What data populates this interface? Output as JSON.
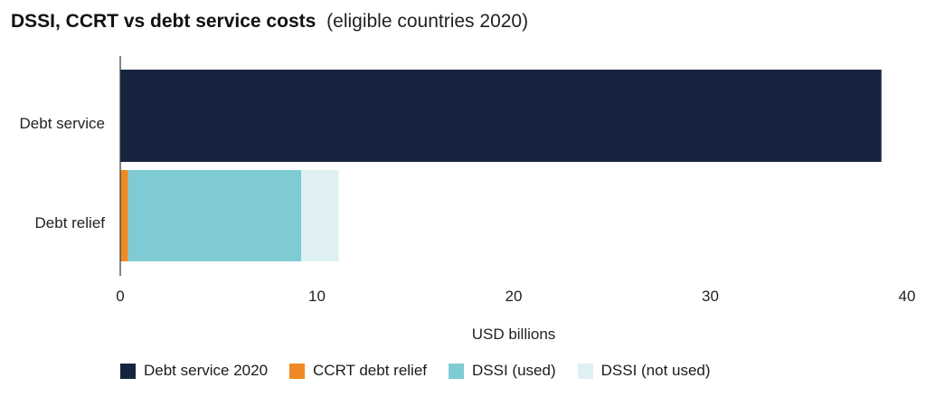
{
  "header": {
    "title": "DSSI, CCRT vs debt service costs",
    "subtitle": "(eligible countries 2020)"
  },
  "colors": {
    "debt_service": "#172440",
    "ccrt": "#f08a24",
    "dssi_used": "#7ecbd3",
    "dssi_not_used": "#dff0f3",
    "axis": "#333333"
  },
  "chart_data": {
    "type": "bar",
    "orientation": "horizontal",
    "stacked": true,
    "categories": [
      "Debt service",
      "Debt relief"
    ],
    "series": [
      {
        "name": "Debt service 2020",
        "values": [
          38.7,
          0
        ]
      },
      {
        "name": "CCRT debt relief",
        "values": [
          0,
          0.4
        ]
      },
      {
        "name": "DSSI (used)",
        "values": [
          0,
          8.8
        ]
      },
      {
        "name": "DSSI (not used)",
        "values": [
          0,
          1.9
        ]
      }
    ],
    "xlabel": "USD billions",
    "xlim": [
      0,
      40
    ],
    "xticks": [
      "0",
      "10",
      "20",
      "30",
      "40"
    ],
    "grid": false,
    "legend_position": "bottom"
  }
}
